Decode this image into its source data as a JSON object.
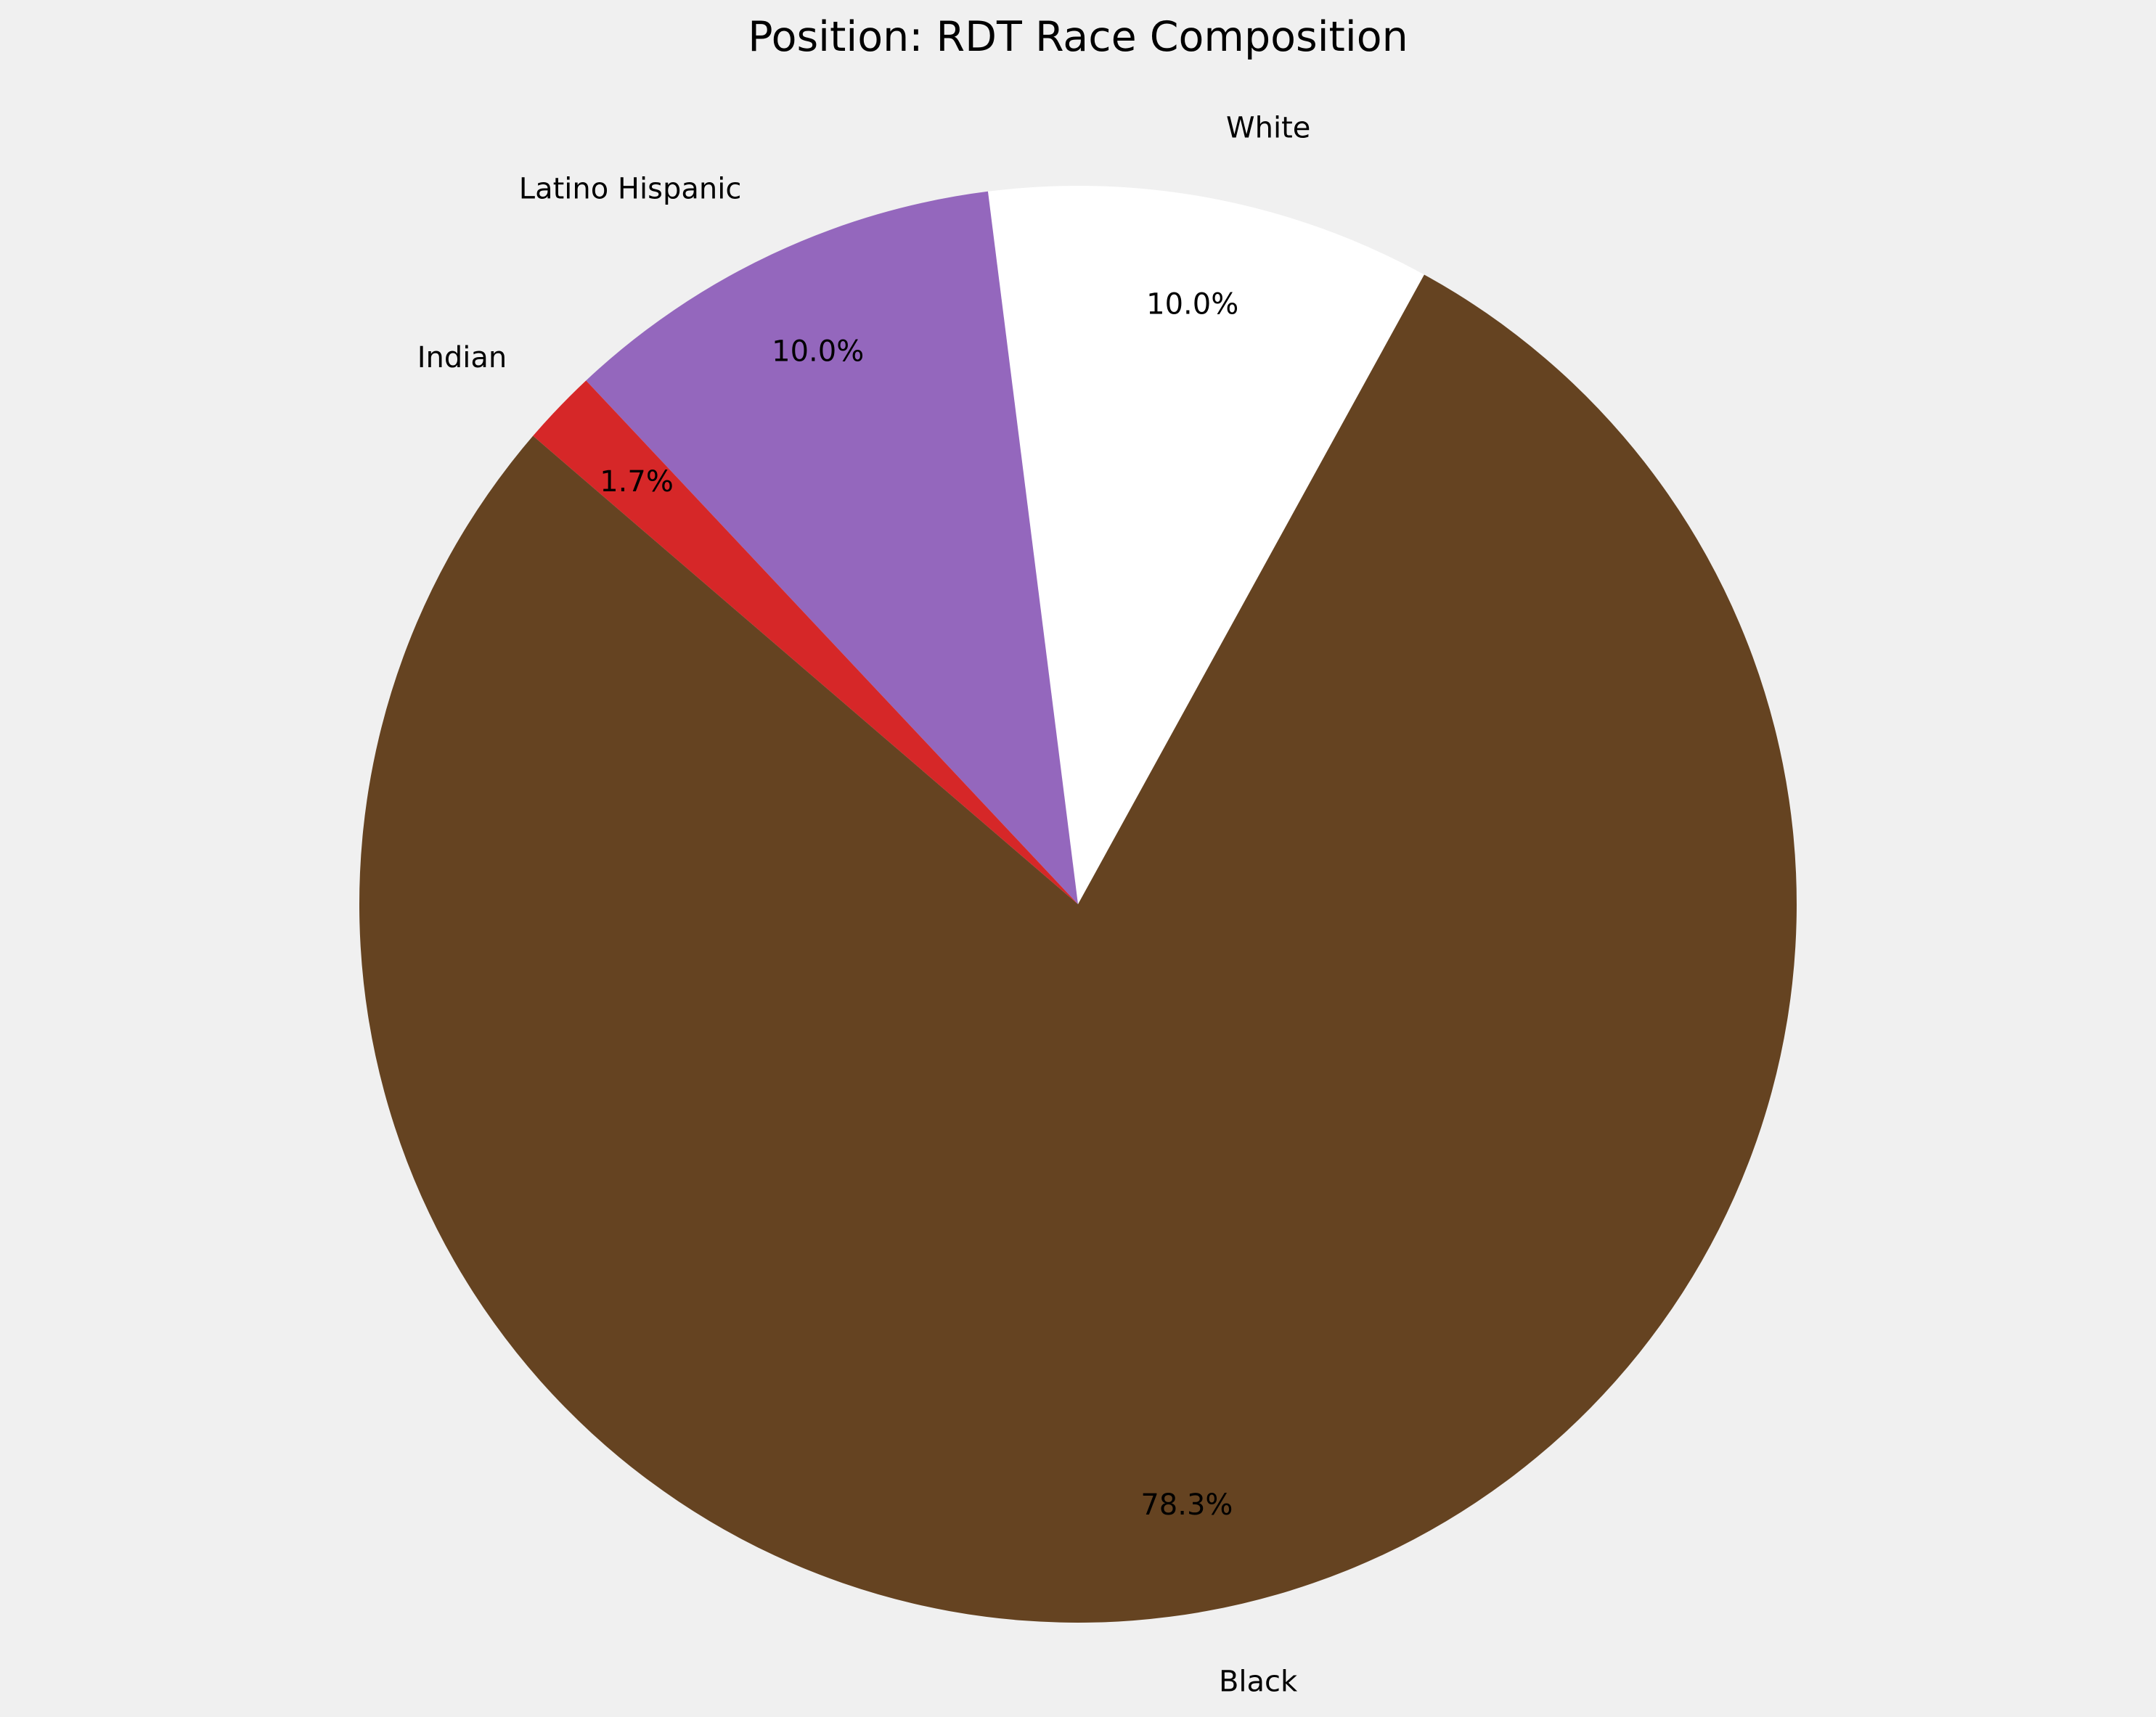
{
  "chart_data": {
    "type": "pie",
    "title": "Position: RDT Race Composition",
    "slices": [
      {
        "label": "White",
        "percent": 10.0,
        "percent_label": "10.0%",
        "color": "#ffffff"
      },
      {
        "label": "Latino Hispanic",
        "percent": 10.0,
        "percent_label": "10.0%",
        "color": "#9467bd"
      },
      {
        "label": "Indian",
        "percent": 1.7,
        "percent_label": "1.7%",
        "color": "#d62728"
      },
      {
        "label": "Black",
        "percent": 78.3,
        "percent_label": "78.3%",
        "color": "#654321"
      }
    ],
    "start_angle_deg": 61.2,
    "direction": "counterclockwise",
    "legend": "none",
    "background": "#f0f0f0"
  }
}
